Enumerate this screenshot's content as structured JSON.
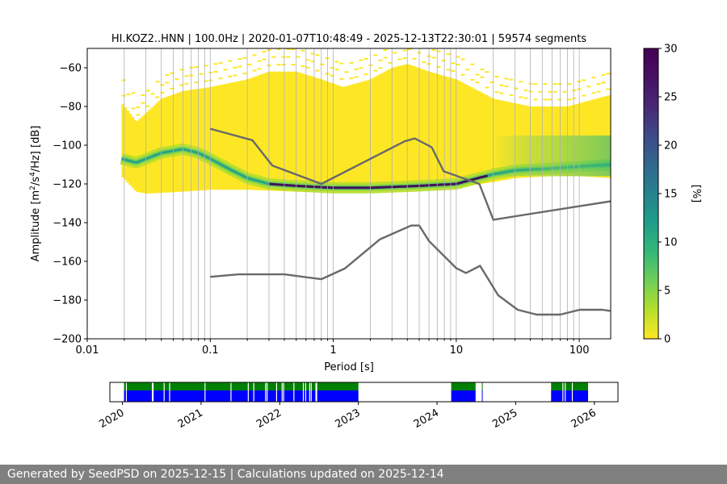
{
  "chart_data": [
    {
      "type": "heatmap",
      "title": "HI.KOZ2..HNN | 100.0Hz | 2020-01-07T10:48:49 - 2025-12-13T22:30:01 | 59574 segments",
      "xlabel": "Period [s]",
      "ylabel_parts": [
        "Amplitude [m",
        "2",
        "/s",
        "4",
        "/Hz] [dB]"
      ],
      "x_scale": "log",
      "xlim": [
        0.01,
        180
      ],
      "ylim": [
        -200,
        -50
      ],
      "x_ticks": [
        0.01,
        0.1,
        1,
        10,
        100
      ],
      "x_tick_labels": [
        "0.01",
        "0.1",
        "1",
        "10",
        "100"
      ],
      "y_ticks": [
        -200,
        -180,
        -160,
        -140,
        -120,
        -100,
        -80,
        -60
      ],
      "y_tick_labels": [
        "−200",
        "−180",
        "−160",
        "−140",
        "−120",
        "−100",
        "−80",
        "−60"
      ],
      "grid": "vertical",
      "colorbar": {
        "label": "[%]",
        "range": [
          0,
          30
        ],
        "ticks": [
          0,
          5,
          10,
          15,
          20,
          25,
          30
        ],
        "tick_labels": [
          "0",
          "5",
          "10",
          "15",
          "20",
          "25",
          "30"
        ],
        "colormap": "viridis_r"
      },
      "psd_upper_edge": {
        "period": [
          0.019,
          0.025,
          0.04,
          0.06,
          0.1,
          0.2,
          0.3,
          0.5,
          0.8,
          1.2,
          2,
          3,
          4,
          6,
          10,
          20,
          40,
          80,
          180
        ],
        "db": [
          -78,
          -88,
          -76,
          -72,
          -70,
          -66,
          -62,
          -62,
          -66,
          -70,
          -66,
          -60,
          -58,
          -62,
          -66,
          -76,
          -80,
          -80,
          -74
        ]
      },
      "psd_lower_edge": {
        "period": [
          0.019,
          0.025,
          0.03,
          0.06,
          0.1,
          0.2,
          0.5,
          1,
          2,
          5,
          10,
          20,
          30,
          60,
          100,
          180
        ],
        "db": [
          -116,
          -124,
          -125,
          -124,
          -123,
          -123,
          -124,
          -124,
          -124,
          -123,
          -122,
          -119,
          -117,
          -116,
          -116,
          -117
        ]
      },
      "psd_mode_curve": {
        "period": [
          0.019,
          0.025,
          0.04,
          0.06,
          0.08,
          0.1,
          0.15,
          0.2,
          0.3,
          0.5,
          1,
          2,
          5,
          10,
          15,
          20,
          30,
          60,
          100,
          180
        ],
        "db": [
          -107,
          -109,
          -104,
          -102,
          -104,
          -107,
          -113,
          -117,
          -120,
          -121,
          -122,
          -122,
          -121,
          -120,
          -117,
          -115,
          -113,
          -112,
          -111,
          -110
        ]
      },
      "model_curves": [
        {
          "period": [
            0.1,
            0.22,
            0.32,
            0.8,
            3.8,
            4.6,
            6.3,
            7.9,
            15.4,
            20,
            354.8
          ],
          "db": [
            -91.5,
            -97.4,
            -110.5,
            -120,
            -98,
            -96.5,
            -101,
            -113.5,
            -120,
            -138.5,
            -126
          ]
        },
        {
          "period": [
            0.1,
            0.17,
            0.4,
            0.8,
            1.24,
            2.4,
            4.3,
            5,
            6,
            10,
            12,
            15.6,
            21.9,
            31.6,
            45,
            70,
            101,
            154,
            178
          ],
          "db": [
            -168,
            -166.7,
            -166.7,
            -169.2,
            -163.7,
            -148.6,
            -141.5,
            -141.5,
            -149.5,
            -163.5,
            -166,
            -162.3,
            -177.5,
            -185,
            -187.5,
            -187.5,
            -185,
            -185,
            -185.6
          ]
        }
      ],
      "model_color": "#696969"
    },
    {
      "type": "timeline",
      "x_ticks": [
        "2020",
        "2021",
        "2022",
        "2023",
        "2024",
        "2025",
        "2026"
      ],
      "x_tick_years": [
        2020,
        2021,
        2022,
        2023,
        2024,
        2025,
        2026
      ],
      "xlim_years": [
        2019.84,
        2026.3
      ],
      "colors": {
        "coverage": "#0000ff",
        "availability": "#008000"
      },
      "data_intervals_years": [
        [
          2020.02,
          2023.0
        ],
        [
          2024.18,
          2024.49
        ],
        [
          2024.57,
          2024.58
        ],
        [
          2025.45,
          2025.92
        ]
      ],
      "gaps_years": [
        2020.05,
        2020.38,
        2020.39,
        2020.53,
        2020.6,
        2021.05,
        2021.38,
        2021.6,
        2021.67,
        2021.82,
        2021.84,
        2021.96,
        2022.03,
        2022.05,
        2022.18,
        2022.3,
        2022.33,
        2022.38,
        2022.4,
        2022.46,
        2022.47,
        2024.55,
        2025.6,
        2025.63,
        2025.72
      ]
    }
  ],
  "footer": {
    "text": "Generated by SeedPSD on 2025-12-15 | Calculations updated on 2025-12-14"
  }
}
